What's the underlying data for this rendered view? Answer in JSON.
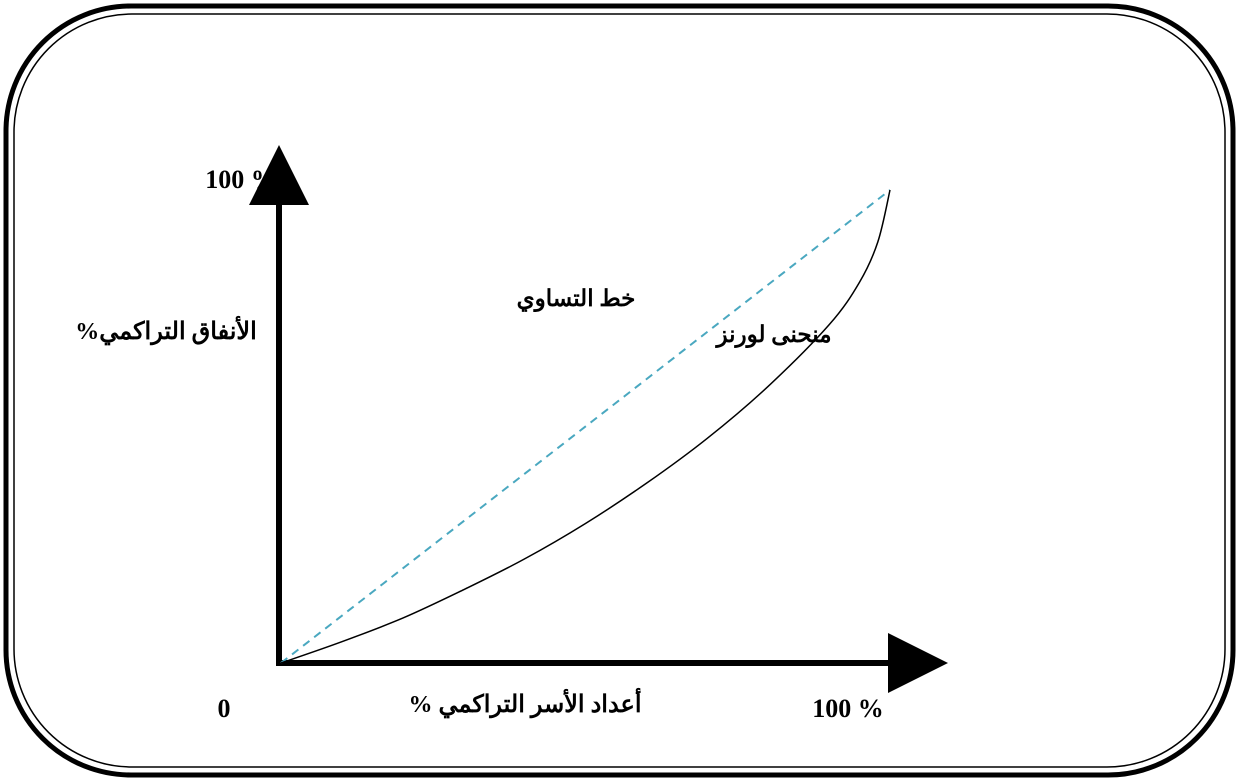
{
  "chart_data": {
    "type": "line",
    "title": "",
    "xlabel": "أعداد الأسر التراكمي %",
    "ylabel": "الأنفاق التراكمي%",
    "origin_label": "0",
    "x_max_label": "100 %",
    "y_max_label": "100 %",
    "xlim": [
      0,
      100
    ],
    "ylim": [
      0,
      100
    ],
    "grid": false,
    "series": [
      {
        "name": "خط التساوي",
        "style": "dashed",
        "color": "#4aa8c0",
        "x": [
          0,
          100
        ],
        "y": [
          0,
          100
        ]
      },
      {
        "name": "منحنى لورنز",
        "style": "solid",
        "color": "#000000",
        "x": [
          0,
          10,
          20,
          30,
          40,
          50,
          60,
          70,
          80,
          90,
          95,
          98,
          100
        ],
        "y": [
          0,
          4.5,
          9.5,
          15.5,
          22,
          29.5,
          38,
          47.5,
          58.5,
          71.5,
          80.5,
          89,
          100
        ]
      }
    ]
  }
}
